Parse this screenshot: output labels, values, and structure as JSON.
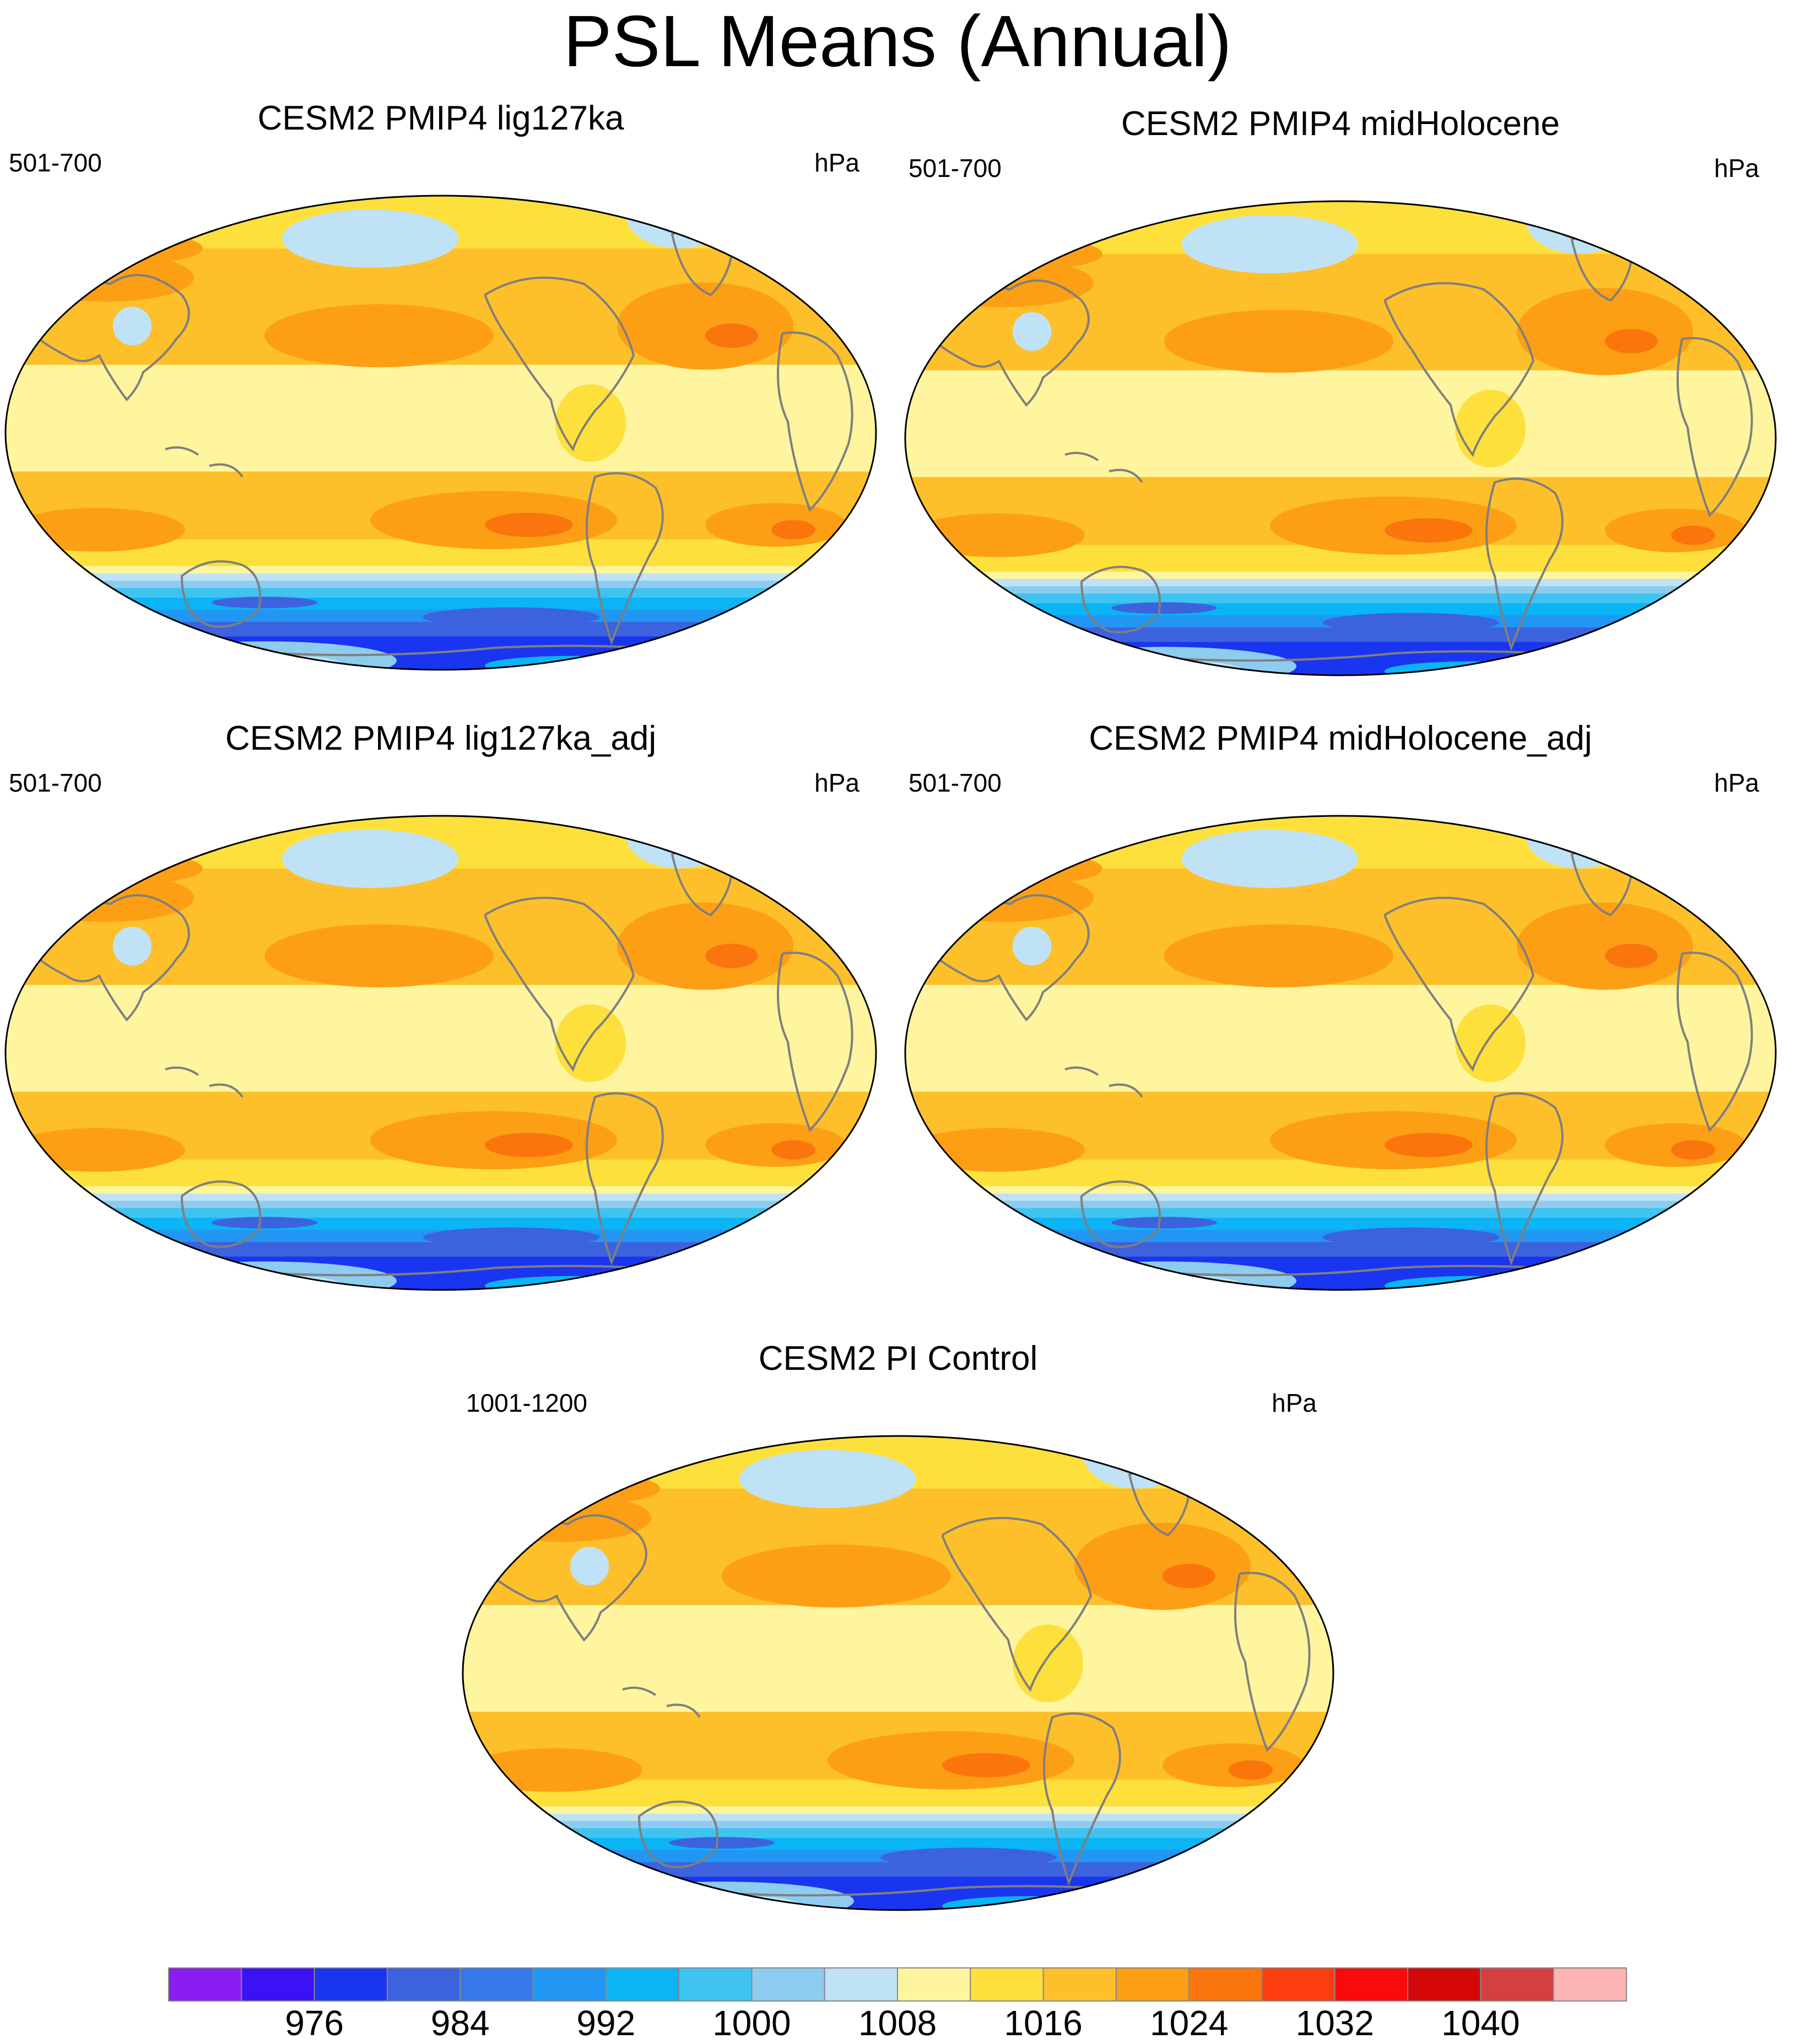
{
  "title": "PSL Means (Annual)",
  "units": "hPa",
  "panels": [
    {
      "name": "CESM2 PMIP4 lig127ka",
      "years": "501-700"
    },
    {
      "name": "CESM2 PMIP4 midHolocene",
      "years": "501-700"
    },
    {
      "name": "CESM2 PMIP4 lig127ka_adj",
      "years": "501-700"
    },
    {
      "name": "CESM2 PMIP4 midHolocene_adj",
      "years": "501-700"
    },
    {
      "name": "CESM2 PI Control",
      "years": "1001-1200"
    }
  ],
  "colorbar": {
    "colors": [
      "#8B1DF2",
      "#3A12F5",
      "#1A35F0",
      "#3D62DD",
      "#3478EA",
      "#2196F3",
      "#0BB4F5",
      "#3FC4F2",
      "#8ECCEF",
      "#BFE2F7",
      "#FFF59E",
      "#FDE03C",
      "#FDC02A",
      "#FD9F15",
      "#FA760D",
      "#FC3D0D",
      "#FB0A0A",
      "#D40808",
      "#D43F3F",
      "#FDB4B4"
    ],
    "labels": [
      "976",
      "984",
      "992",
      "1000",
      "1008",
      "1016",
      "1024",
      "1032",
      "1040"
    ]
  },
  "chart_data": {
    "type": "heatmap",
    "variable": "PSL",
    "projection": "Robinson (Pacific-centred)",
    "contour_levels_hPa": [
      972,
      976,
      980,
      984,
      988,
      992,
      996,
      1000,
      1004,
      1008,
      1012,
      1016,
      1020,
      1024,
      1028,
      1032,
      1036,
      1040,
      1044
    ],
    "fields": [
      {
        "panel": "CESM2 PMIP4 lig127ka",
        "subtropical_high_max_hPa": 1026,
        "southern_ocean_trough_min_hPa": 980,
        "aleutian_low_hPa": 1006,
        "greenland_low_hPa": 1006
      },
      {
        "panel": "CESM2 PMIP4 midHolocene",
        "subtropical_high_max_hPa": 1026,
        "southern_ocean_trough_min_hPa": 980,
        "aleutian_low_hPa": 1006,
        "greenland_low_hPa": 1006
      },
      {
        "panel": "CESM2 PMIP4 lig127ka_adj",
        "subtropical_high_max_hPa": 1026,
        "southern_ocean_trough_min_hPa": 980,
        "aleutian_low_hPa": 1006,
        "greenland_low_hPa": 1006
      },
      {
        "panel": "CESM2 PMIP4 midHolocene_adj",
        "subtropical_high_max_hPa": 1026,
        "southern_ocean_trough_min_hPa": 980,
        "aleutian_low_hPa": 1006,
        "greenland_low_hPa": 1006
      },
      {
        "panel": "CESM2 PI Control",
        "subtropical_high_max_hPa": 1026,
        "southern_ocean_trough_min_hPa": 980,
        "aleutian_low_hPa": 1006,
        "greenland_low_hPa": 1006
      }
    ]
  }
}
